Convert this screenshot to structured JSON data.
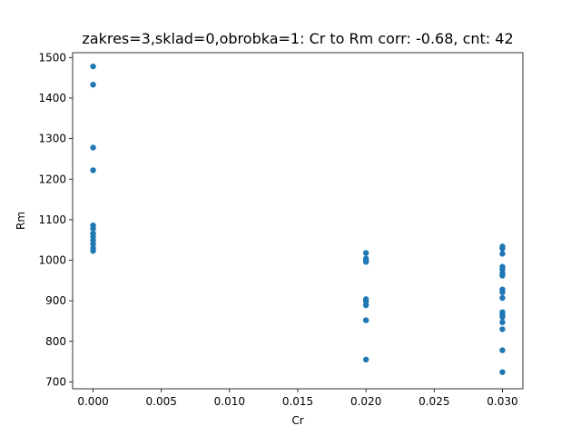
{
  "chart_data": {
    "type": "scatter",
    "title": "zakres=3,sklad=0,obrobka=1: Cr to Rm corr: -0.68, cnt: 42",
    "xlabel": "Cr",
    "ylabel": "Rm",
    "xlim": [
      -0.0015,
      0.0315
    ],
    "ylim": [
      683,
      1512
    ],
    "x_ticks": [
      0.0,
      0.005,
      0.01,
      0.015,
      0.02,
      0.025,
      0.03
    ],
    "x_tick_labels": [
      "0.000",
      "0.005",
      "0.010",
      "0.015",
      "0.020",
      "0.025",
      "0.030"
    ],
    "y_ticks": [
      700,
      800,
      900,
      1000,
      1100,
      1200,
      1300,
      1400,
      1500
    ],
    "y_tick_labels": [
      "700",
      "800",
      "900",
      "1000",
      "1100",
      "1200",
      "1300",
      "1400",
      "1500"
    ],
    "grid": false,
    "color": "#1f77b4",
    "points": [
      {
        "x": 0.0,
        "y": 1478
      },
      {
        "x": 0.0,
        "y": 1433
      },
      {
        "x": 0.0,
        "y": 1278
      },
      {
        "x": 0.0,
        "y": 1222
      },
      {
        "x": 0.0,
        "y": 1086
      },
      {
        "x": 0.0,
        "y": 1078
      },
      {
        "x": 0.0,
        "y": 1066
      },
      {
        "x": 0.0,
        "y": 1058
      },
      {
        "x": 0.0,
        "y": 1049
      },
      {
        "x": 0.0,
        "y": 1040
      },
      {
        "x": 0.0,
        "y": 1030
      },
      {
        "x": 0.0,
        "y": 1023
      },
      {
        "x": 0.02,
        "y": 1018
      },
      {
        "x": 0.02,
        "y": 1004
      },
      {
        "x": 0.02,
        "y": 999
      },
      {
        "x": 0.02,
        "y": 996
      },
      {
        "x": 0.02,
        "y": 904
      },
      {
        "x": 0.02,
        "y": 898
      },
      {
        "x": 0.02,
        "y": 889
      },
      {
        "x": 0.02,
        "y": 852
      },
      {
        "x": 0.02,
        "y": 755
      },
      {
        "x": 0.03,
        "y": 1034
      },
      {
        "x": 0.03,
        "y": 1029
      },
      {
        "x": 0.03,
        "y": 1016
      },
      {
        "x": 0.03,
        "y": 984
      },
      {
        "x": 0.03,
        "y": 977
      },
      {
        "x": 0.03,
        "y": 968
      },
      {
        "x": 0.03,
        "y": 962
      },
      {
        "x": 0.03,
        "y": 928
      },
      {
        "x": 0.03,
        "y": 921
      },
      {
        "x": 0.03,
        "y": 907
      },
      {
        "x": 0.03,
        "y": 872
      },
      {
        "x": 0.03,
        "y": 866
      },
      {
        "x": 0.03,
        "y": 860
      },
      {
        "x": 0.03,
        "y": 847
      },
      {
        "x": 0.03,
        "y": 830
      },
      {
        "x": 0.03,
        "y": 778
      },
      {
        "x": 0.03,
        "y": 724
      }
    ]
  }
}
